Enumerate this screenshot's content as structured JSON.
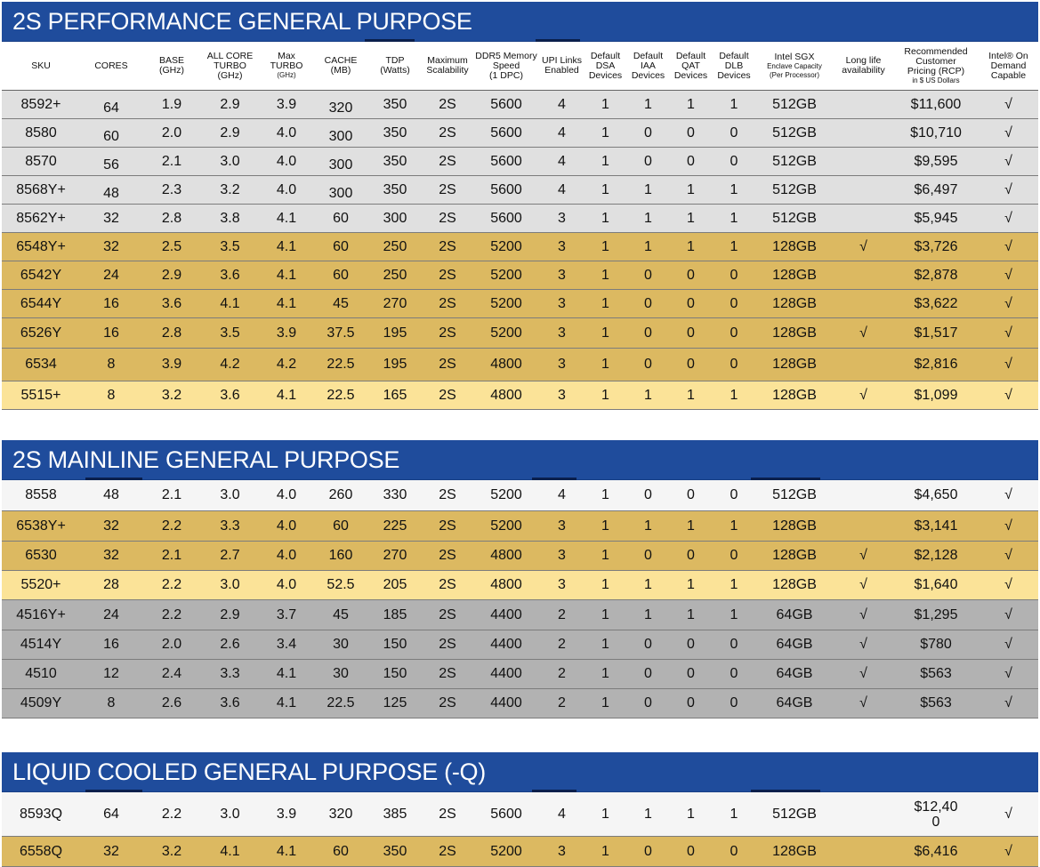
{
  "columns": [
    {
      "key": "sku",
      "label": "SKU"
    },
    {
      "key": "cores",
      "label": "CORES"
    },
    {
      "key": "base",
      "label": "BASE\n(GHz)"
    },
    {
      "key": "allcore",
      "label": "ALL CORE\nTURBO\n(GHz)"
    },
    {
      "key": "maxturbo",
      "label": "Max\nTURBO",
      "sub": "(GHz)"
    },
    {
      "key": "cache",
      "label": "CACHE\n(MB)"
    },
    {
      "key": "tdp",
      "label": "TDP\n(Watts)"
    },
    {
      "key": "scal",
      "label": "Maximum\nScalability"
    },
    {
      "key": "ddr5",
      "label": "DDR5 Memory\nSpeed\n(1 DPC)"
    },
    {
      "key": "upi",
      "label": "UPI Links\nEnabled"
    },
    {
      "key": "dsa",
      "label": "Default\nDSA\nDevices"
    },
    {
      "key": "iaa",
      "label": "Default\nIAA\nDevices"
    },
    {
      "key": "qat",
      "label": "Default\nQAT\nDevices"
    },
    {
      "key": "dlb",
      "label": "Default\nDLB\nDevices"
    },
    {
      "key": "sgx",
      "label": "Intel SGX",
      "sub": "Enclave Capacity\n(Per Processor)"
    },
    {
      "key": "longlife",
      "label": "Long life\navailability"
    },
    {
      "key": "rcp",
      "label": "Recommended\nCustomer\nPricing (RCP)",
      "sub": "in $ US Dollars"
    },
    {
      "key": "ondemand",
      "label": "Intel® On\nDemand\nCapable"
    }
  ],
  "sections": [
    {
      "title": "2S PERFORMANCE GENERAL PURPOSE",
      "rows": [
        {
          "tone": "lg",
          "cells": [
            "8592+",
            "64",
            "1.9",
            "2.9",
            "3.9",
            "320",
            "350",
            "2S",
            "5600",
            "4",
            "1",
            "1",
            "1",
            "1",
            "512GB",
            "",
            "$11,600",
            "√"
          ]
        },
        {
          "tone": "lg",
          "cells": [
            "8580",
            "60",
            "2.0",
            "2.9",
            "4.0",
            "300",
            "350",
            "2S",
            "5600",
            "4",
            "1",
            "0",
            "0",
            "0",
            "512GB",
            "",
            "$10,710",
            "√"
          ]
        },
        {
          "tone": "lg",
          "cells": [
            "8570",
            "56",
            "2.1",
            "3.0",
            "4.0",
            "300",
            "350",
            "2S",
            "5600",
            "4",
            "1",
            "0",
            "0",
            "0",
            "512GB",
            "",
            "$9,595",
            "√"
          ]
        },
        {
          "tone": "lg",
          "cells": [
            "8568Y+",
            "48",
            "2.3",
            "3.2",
            "4.0",
            "300",
            "350",
            "2S",
            "5600",
            "4",
            "1",
            "1",
            "1",
            "1",
            "512GB",
            "",
            "$6,497",
            "√"
          ]
        },
        {
          "tone": "lg",
          "cells": [
            "8562Y+",
            "32",
            "2.8",
            "3.8",
            "4.1",
            "60",
            "300",
            "2S",
            "5600",
            "3",
            "1",
            "1",
            "1",
            "1",
            "512GB",
            "",
            "$5,945",
            "√"
          ]
        },
        {
          "tone": "g",
          "cells": [
            "6548Y+",
            "32",
            "2.5",
            "3.5",
            "4.1",
            "60",
            "250",
            "2S",
            "5200",
            "3",
            "1",
            "1",
            "1",
            "1",
            "128GB",
            "√",
            "$3,726",
            "√"
          ]
        },
        {
          "tone": "g",
          "cells": [
            "6542Y",
            "24",
            "2.9",
            "3.6",
            "4.1",
            "60",
            "250",
            "2S",
            "5200",
            "3",
            "1",
            "0",
            "0",
            "0",
            "128GB",
            "",
            "$2,878",
            "√"
          ]
        },
        {
          "tone": "g",
          "cells": [
            "6544Y",
            "16",
            "3.6",
            "4.1",
            "4.1",
            "45",
            "270",
            "2S",
            "5200",
            "3",
            "1",
            "0",
            "0",
            "0",
            "128GB",
            "",
            "$3,622",
            "√"
          ]
        },
        {
          "tone": "g",
          "cells": [
            "6526Y",
            "16",
            "2.8",
            "3.5",
            "3.9",
            "37.5",
            "195",
            "2S",
            "5200",
            "3",
            "1",
            "0",
            "0",
            "0",
            "128GB",
            "√",
            "$1,517",
            "√"
          ]
        },
        {
          "tone": "g",
          "cells": [
            "6534",
            "8",
            "3.9",
            "4.2",
            "4.2",
            "22.5",
            "195",
            "2S",
            "4800",
            "3",
            "1",
            "0",
            "0",
            "0",
            "128GB",
            "",
            "$2,816",
            "√"
          ]
        },
        {
          "tone": "y",
          "cells": [
            "5515+",
            "8",
            "3.2",
            "3.6",
            "4.1",
            "22.5",
            "165",
            "2S",
            "4800",
            "3",
            "1",
            "1",
            "1",
            "1",
            "128GB",
            "√",
            "$1,099",
            "√"
          ]
        }
      ]
    },
    {
      "title": "2S MAINLINE GENERAL PURPOSE",
      "rows": [
        {
          "tone": "w",
          "cells": [
            "8558",
            "48",
            "2.1",
            "3.0",
            "4.0",
            "260",
            "330",
            "2S",
            "5200",
            "4",
            "1",
            "0",
            "0",
            "0",
            "512GB",
            "",
            "$4,650",
            "√"
          ]
        },
        {
          "tone": "g",
          "cells": [
            "6538Y+",
            "32",
            "2.2",
            "3.3",
            "4.0",
            "60",
            "225",
            "2S",
            "5200",
            "3",
            "1",
            "1",
            "1",
            "1",
            "128GB",
            "",
            "$3,141",
            "√"
          ]
        },
        {
          "tone": "g",
          "cells": [
            "6530",
            "32",
            "2.1",
            "2.7",
            "4.0",
            "160",
            "270",
            "2S",
            "4800",
            "3",
            "1",
            "0",
            "0",
            "0",
            "128GB",
            "√",
            "$2,128",
            "√"
          ]
        },
        {
          "tone": "y",
          "cells": [
            "5520+",
            "28",
            "2.2",
            "3.0",
            "4.0",
            "52.5",
            "205",
            "2S",
            "4800",
            "3",
            "1",
            "1",
            "1",
            "1",
            "128GB",
            "√",
            "$1,640",
            "√"
          ]
        },
        {
          "tone": "dg",
          "cells": [
            "4516Y+",
            "24",
            "2.2",
            "2.9",
            "3.7",
            "45",
            "185",
            "2S",
            "4400",
            "2",
            "1",
            "1",
            "1",
            "1",
            "64GB",
            "√",
            "$1,295",
            "√"
          ]
        },
        {
          "tone": "dg",
          "cells": [
            "4514Y",
            "16",
            "2.0",
            "2.6",
            "3.4",
            "30",
            "150",
            "2S",
            "4400",
            "2",
            "1",
            "0",
            "0",
            "0",
            "64GB",
            "√",
            "$780",
            "√"
          ]
        },
        {
          "tone": "dg",
          "cells": [
            "4510",
            "12",
            "2.4",
            "3.3",
            "4.1",
            "30",
            "150",
            "2S",
            "4400",
            "2",
            "1",
            "0",
            "0",
            "0",
            "64GB",
            "√",
            "$563",
            "√"
          ]
        },
        {
          "tone": "dg",
          "cells": [
            "4509Y",
            "8",
            "2.6",
            "3.6",
            "4.1",
            "22.5",
            "125",
            "2S",
            "4400",
            "2",
            "1",
            "0",
            "0",
            "0",
            "64GB",
            "√",
            "$563",
            "√"
          ]
        }
      ]
    },
    {
      "title": "LIQUID COOLED GENERAL PURPOSE (-Q)",
      "rows": [
        {
          "tone": "w",
          "cells": [
            "8593Q",
            "64",
            "2.2",
            "3.0",
            "3.9",
            "320",
            "385",
            "2S",
            "5600",
            "4",
            "1",
            "1",
            "1",
            "1",
            "512GB",
            "",
            "$12,40\n0",
            "√"
          ]
        },
        {
          "tone": "g",
          "cells": [
            "6558Q",
            "32",
            "3.2",
            "4.1",
            "4.1",
            "60",
            "350",
            "2S",
            "5200",
            "3",
            "1",
            "0",
            "0",
            "0",
            "128GB",
            "",
            "$6,416",
            "√"
          ]
        }
      ]
    }
  ]
}
